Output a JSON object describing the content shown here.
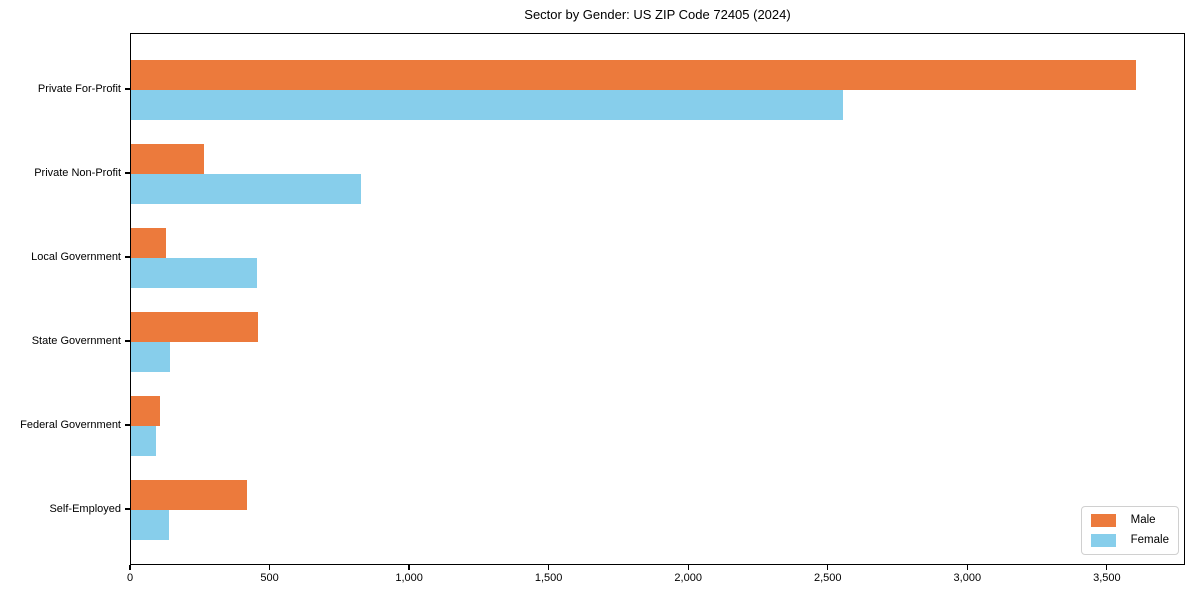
{
  "title": "Sector by Gender: US ZIP Code 72405 (2024)",
  "colors": {
    "male": "#EC7A3C",
    "female": "#87CEEB",
    "spine": "#000000",
    "legend_border": "#d0d0d0",
    "background": "#ffffff"
  },
  "legend": {
    "items": [
      {
        "label": "Male",
        "color": "#EC7A3C"
      },
      {
        "label": "Female",
        "color": "#87CEEB"
      }
    ],
    "position": "lower right"
  },
  "chart_data": {
    "type": "bar",
    "orientation": "horizontal",
    "title": "Sector by Gender: US ZIP Code 72405 (2024)",
    "xlabel": "",
    "ylabel": "",
    "categories": [
      "Private For-Profit",
      "Private Non-Profit",
      "Local Government",
      "State Government",
      "Federal Government",
      "Self-Employed"
    ],
    "series": [
      {
        "name": "Male",
        "color": "#EC7A3C",
        "values": [
          3600,
          260,
          125,
          455,
          105,
          415
        ]
      },
      {
        "name": "Female",
        "color": "#87CEEB",
        "values": [
          2550,
          825,
          450,
          140,
          90,
          135
        ]
      }
    ],
    "xlim": [
      0,
      3780
    ],
    "xticks": [
      0,
      500,
      1000,
      1500,
      2000,
      2500,
      3000,
      3500
    ],
    "xtick_labels": [
      "0",
      "500",
      "1,000",
      "1,500",
      "2,000",
      "2,500",
      "3,000",
      "3,500"
    ],
    "grid": false,
    "legend_position": "lower right"
  }
}
